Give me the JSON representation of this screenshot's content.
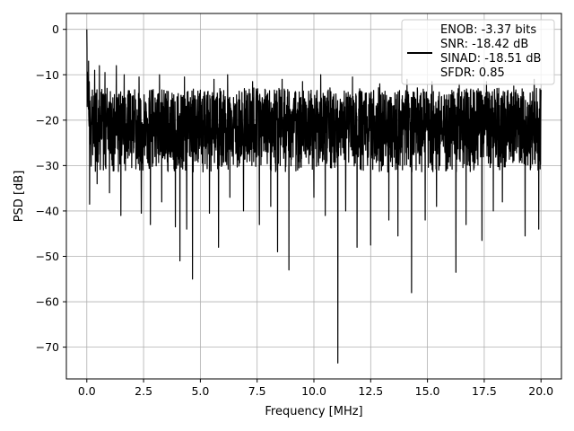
{
  "chart_data": {
    "type": "line",
    "title": "",
    "xlabel": "Frequency [MHz]",
    "ylabel": "PSD [dB]",
    "xlim": [
      -0.9,
      20.9
    ],
    "ylim": [
      -77,
      3.5
    ],
    "x_ticks": [
      0.0,
      2.5,
      5.0,
      7.5,
      10.0,
      12.5,
      15.0,
      17.5,
      20.0
    ],
    "x_tick_labels": [
      "0.0",
      "2.5",
      "5.0",
      "7.5",
      "10.0",
      "12.5",
      "15.0",
      "17.5",
      "20.0"
    ],
    "y_ticks": [
      0,
      -10,
      -20,
      -30,
      -40,
      -50,
      -60,
      -70
    ],
    "y_tick_labels": [
      "0",
      "−10",
      "−20",
      "−30",
      "−40",
      "−50",
      "−60",
      "−70"
    ],
    "grid": true,
    "legend_position": "top-right",
    "legend_lines": [
      "ENOB: -3.37 bits",
      "SNR: -18.42 dB",
      "SINAD: -18.51 dB",
      "SFDR: 0.85"
    ],
    "series": [
      {
        "color": "#000000",
        "x_range": [
          0,
          20
        ],
        "peak": {
          "x": 0.0,
          "y": 0.0
        },
        "noise_top": -14,
        "noise_floor": -31,
        "dips": [
          {
            "x": 0.12,
            "y": -38.5
          },
          {
            "x": 0.45,
            "y": -34
          },
          {
            "x": 1.0,
            "y": -36
          },
          {
            "x": 1.5,
            "y": -41
          },
          {
            "x": 2.4,
            "y": -40.5
          },
          {
            "x": 2.8,
            "y": -43
          },
          {
            "x": 3.3,
            "y": -38
          },
          {
            "x": 3.9,
            "y": -43.5
          },
          {
            "x": 4.1,
            "y": -51
          },
          {
            "x": 4.4,
            "y": -44
          },
          {
            "x": 4.65,
            "y": -55
          },
          {
            "x": 5.4,
            "y": -40.5
          },
          {
            "x": 5.8,
            "y": -48
          },
          {
            "x": 6.3,
            "y": -37
          },
          {
            "x": 6.9,
            "y": -40
          },
          {
            "x": 7.6,
            "y": -43
          },
          {
            "x": 8.1,
            "y": -39
          },
          {
            "x": 8.4,
            "y": -49
          },
          {
            "x": 8.9,
            "y": -53
          },
          {
            "x": 9.5,
            "y": -38
          },
          {
            "x": 10.0,
            "y": -37
          },
          {
            "x": 10.5,
            "y": -41
          },
          {
            "x": 11.05,
            "y": -73.5
          },
          {
            "x": 11.4,
            "y": -40
          },
          {
            "x": 11.9,
            "y": -48
          },
          {
            "x": 12.5,
            "y": -47.5
          },
          {
            "x": 13.3,
            "y": -42
          },
          {
            "x": 13.7,
            "y": -45.5
          },
          {
            "x": 14.3,
            "y": -58
          },
          {
            "x": 14.9,
            "y": -42
          },
          {
            "x": 15.4,
            "y": -39
          },
          {
            "x": 16.25,
            "y": -53.5
          },
          {
            "x": 16.7,
            "y": -43
          },
          {
            "x": 17.4,
            "y": -46.5
          },
          {
            "x": 17.9,
            "y": -40
          },
          {
            "x": 18.3,
            "y": -38
          },
          {
            "x": 19.3,
            "y": -45.5
          },
          {
            "x": 19.9,
            "y": -44
          }
        ],
        "spikes_up": [
          {
            "x": 0.08,
            "y": -7
          },
          {
            "x": 0.35,
            "y": -9
          },
          {
            "x": 0.55,
            "y": -8
          },
          {
            "x": 0.8,
            "y": -9.5
          },
          {
            "x": 1.3,
            "y": -8
          },
          {
            "x": 1.65,
            "y": -10
          },
          {
            "x": 2.3,
            "y": -10.5
          },
          {
            "x": 3.2,
            "y": -10
          },
          {
            "x": 4.3,
            "y": -10.5
          },
          {
            "x": 5.6,
            "y": -11
          },
          {
            "x": 6.2,
            "y": -10
          },
          {
            "x": 7.3,
            "y": -11.5
          },
          {
            "x": 8.6,
            "y": -11
          },
          {
            "x": 9.5,
            "y": -11.5
          },
          {
            "x": 10.3,
            "y": -10
          },
          {
            "x": 11.7,
            "y": -10.5
          },
          {
            "x": 12.9,
            "y": -12
          },
          {
            "x": 14.1,
            "y": -11
          },
          {
            "x": 15.2,
            "y": -11.5
          },
          {
            "x": 16.4,
            "y": -12
          },
          {
            "x": 17.6,
            "y": -11.5
          },
          {
            "x": 18.8,
            "y": -12.5
          },
          {
            "x": 19.7,
            "y": -11
          }
        ]
      }
    ]
  }
}
